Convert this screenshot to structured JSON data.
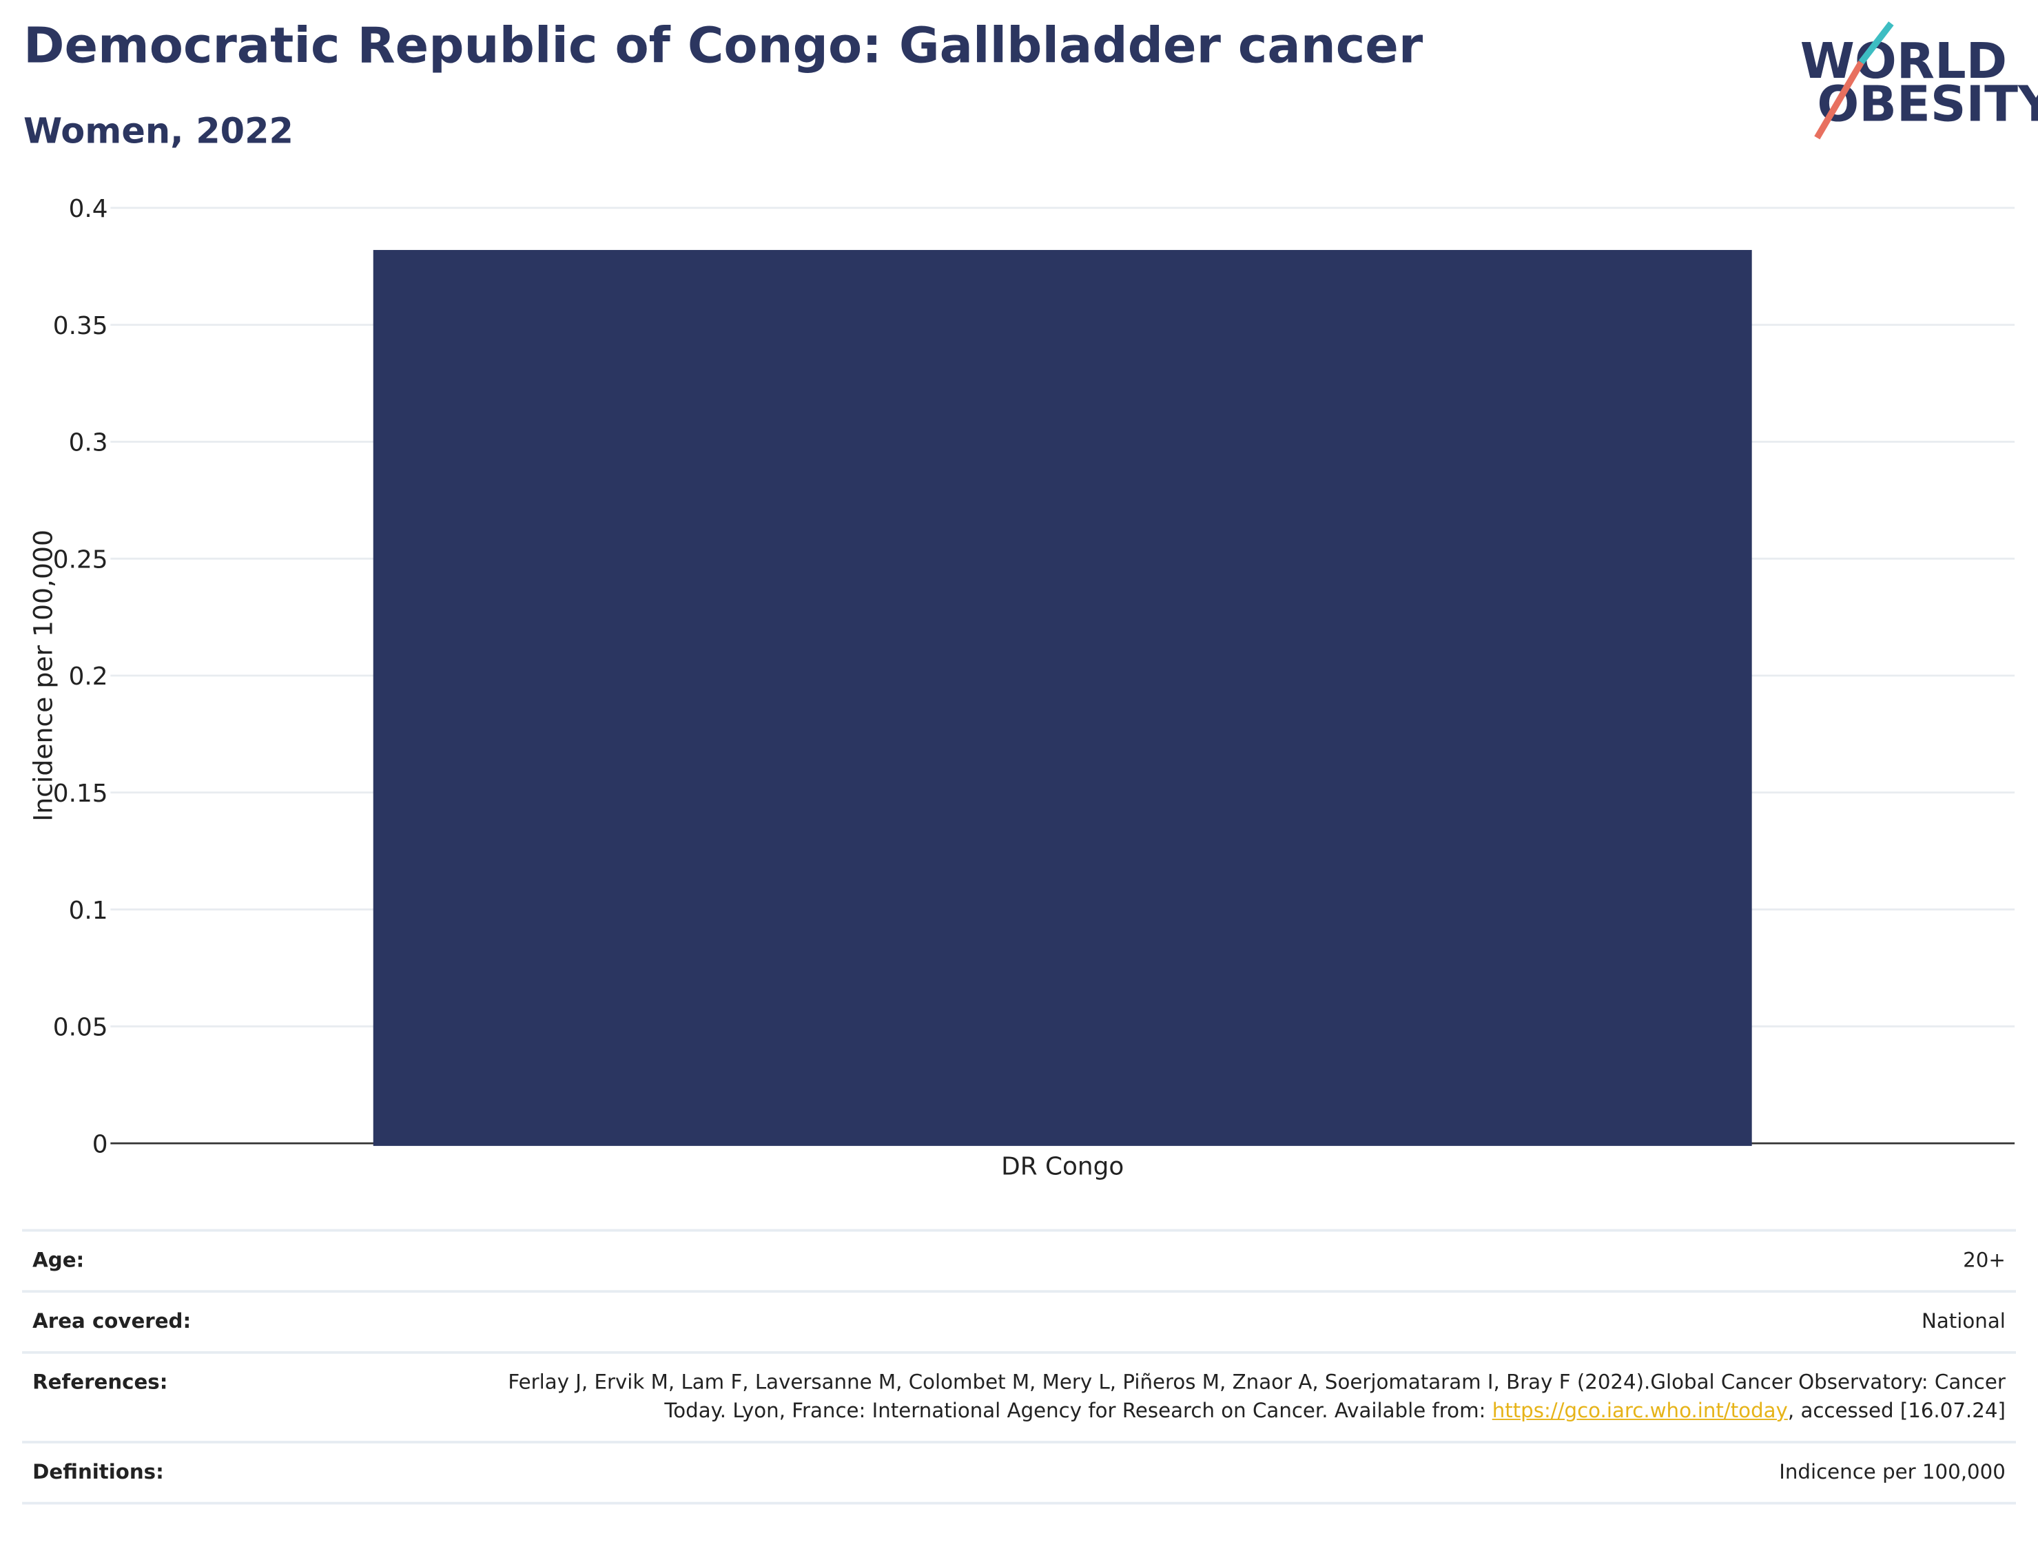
{
  "chart_data": {
    "type": "bar",
    "title": "Democratic Republic of Congo: Gallbladder cancer",
    "subtitle": "Women, 2022",
    "y_label": "Incidence per 100,000",
    "categories": [
      "DR Congo"
    ],
    "values": [
      0.382
    ],
    "color": "#2b3661",
    "ylim": [
      0,
      0.4
    ],
    "yticks": [
      0,
      0.05,
      0.1,
      0.15,
      0.2,
      0.25,
      0.3,
      0.35,
      0.4
    ],
    "grid": true
  },
  "logo": {
    "line1": "WORLD",
    "line2": "OBESITY"
  },
  "table": {
    "rows": [
      {
        "label": "Age:",
        "value": "20+"
      },
      {
        "label": "Area covered:",
        "value": "National"
      },
      {
        "label": "References:",
        "value": {
          "text": "Ferlay J, Ervik M, Lam F, Laversanne M, Colombet M, Mery L, Piñeros M, Znaor A, Soerjomataram I, Bray F (2024).Global Cancer Observatory: Cancer Today. Lyon, France: International Agency for Research on Cancer. Available from: ",
          "link": "https://gco.iarc.who.int/today",
          "after": ", accessed [16.07.24]"
        }
      },
      {
        "label": "Definitions:",
        "value": "Indicence per 100,000"
      }
    ]
  }
}
